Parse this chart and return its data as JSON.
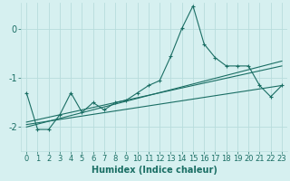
{
  "xlabel": "Humidex (Indice chaleur)",
  "ylabel": "",
  "bg_color": "#d6f0f0",
  "grid_color": "#b8dcdc",
  "line_color": "#1a6e64",
  "xlim": [
    -0.5,
    23.5
  ],
  "ylim": [
    -2.5,
    0.55
  ],
  "yticks": [
    -2,
    -1,
    0
  ],
  "xticks": [
    0,
    1,
    2,
    3,
    4,
    5,
    6,
    7,
    8,
    9,
    10,
    11,
    12,
    13,
    14,
    15,
    16,
    17,
    18,
    19,
    20,
    21,
    22,
    23
  ],
  "main_x": [
    0,
    1,
    2,
    3,
    4,
    5,
    6,
    7,
    8,
    9,
    10,
    11,
    12,
    13,
    14,
    15,
    16,
    17,
    18,
    19,
    20,
    21,
    22,
    23
  ],
  "main_y": [
    -1.3,
    -2.05,
    -2.05,
    -1.75,
    -1.3,
    -1.7,
    -1.5,
    -1.65,
    -1.5,
    -1.45,
    -1.3,
    -1.15,
    -1.05,
    -0.55,
    0.02,
    0.48,
    -0.3,
    -0.58,
    -0.75,
    -0.75,
    -0.75,
    -1.15,
    -1.38,
    -1.15
  ],
  "trend1_x": [
    0,
    23
  ],
  "trend1_y": [
    -1.9,
    -0.75
  ],
  "trend2_x": [
    0,
    23
  ],
  "trend2_y": [
    -2.0,
    -0.65
  ],
  "trend3_x": [
    0,
    23
  ],
  "trend3_y": [
    -1.95,
    -1.15
  ],
  "font_size_label": 7,
  "font_size_tick": 6,
  "marker_size": 2.5,
  "linewidth": 0.8
}
